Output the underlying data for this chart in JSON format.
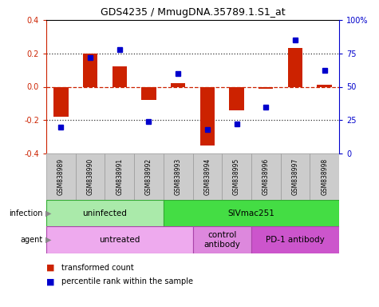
{
  "title": "GDS4235 / MmugDNA.35789.1.S1_at",
  "samples": [
    "GSM838989",
    "GSM838990",
    "GSM838991",
    "GSM838992",
    "GSM838993",
    "GSM838994",
    "GSM838995",
    "GSM838996",
    "GSM838997",
    "GSM838998"
  ],
  "bar_values": [
    -0.18,
    0.2,
    0.12,
    -0.08,
    0.02,
    -0.35,
    -0.14,
    -0.01,
    0.23,
    0.01
  ],
  "dot_values": [
    20,
    72,
    78,
    24,
    60,
    18,
    22,
    35,
    85,
    62
  ],
  "bar_color": "#cc2200",
  "dot_color": "#0000cc",
  "ylim_left": [
    -0.4,
    0.4
  ],
  "ylim_right": [
    0,
    100
  ],
  "yticks_left": [
    -0.4,
    -0.2,
    0.0,
    0.2,
    0.4
  ],
  "yticks_right": [
    0,
    25,
    50,
    75,
    100
  ],
  "yticklabels_right": [
    "0",
    "25",
    "50",
    "75",
    "100%"
  ],
  "hlines_dotted": [
    -0.2,
    0.2
  ],
  "hline_dashed": 0.0,
  "infection_groups": [
    {
      "label": "uninfected",
      "start": 0,
      "end": 4,
      "color": "#aaeaaa"
    },
    {
      "label": "SIVmac251",
      "start": 4,
      "end": 10,
      "color": "#44dd44"
    }
  ],
  "agent_groups": [
    {
      "label": "untreated",
      "start": 0,
      "end": 5,
      "color": "#eeaaee"
    },
    {
      "label": "control\nantibody",
      "start": 5,
      "end": 7,
      "color": "#dd88dd"
    },
    {
      "label": "PD-1 antibody",
      "start": 7,
      "end": 10,
      "color": "#cc55cc"
    }
  ],
  "legend_items": [
    {
      "label": "transformed count",
      "color": "#cc2200"
    },
    {
      "label": "percentile rank within the sample",
      "color": "#0000cc"
    }
  ],
  "background_color": "#ffffff",
  "plot_bg_color": "#ffffff",
  "zero_line_color": "#cc2200",
  "dotted_line_color": "#333333",
  "sample_bg_color": "#cccccc",
  "sample_edge_color": "#999999",
  "infection_edge_color": "#33aa33",
  "agent_edge_color": "#aa44aa"
}
